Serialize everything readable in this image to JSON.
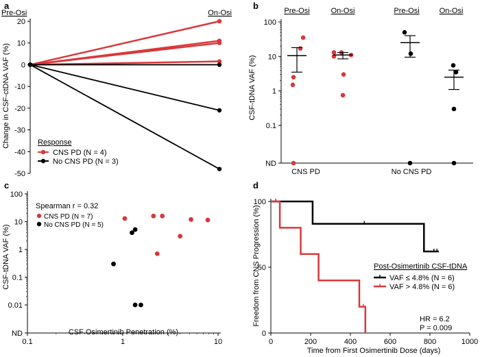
{
  "chart_data": [
    {
      "panel": "a",
      "type": "line",
      "top_left_label": "Pre-Osi",
      "top_right_label": "On-Osi",
      "ylabel": "Change in CSF-ctDNA VAF (%)",
      "ylim": [
        -50,
        20
      ],
      "yticks": [
        "20",
        "10",
        "0",
        "-10",
        "-20",
        "-30",
        "-40",
        "-50"
      ],
      "legend_title": "Response",
      "legend": [
        {
          "name": "CNS PD (N = 4)",
          "color": "#d9373a"
        },
        {
          "name": "No CNS PD (N = 3)",
          "color": "#000000"
        }
      ],
      "series": [
        {
          "group": "CNS PD",
          "color": "#d9373a",
          "values": [
            0,
            20
          ]
        },
        {
          "group": "CNS PD",
          "color": "#d9373a",
          "values": [
            0,
            11
          ]
        },
        {
          "group": "CNS PD",
          "color": "#d9373a",
          "values": [
            0,
            10
          ]
        },
        {
          "group": "CNS PD",
          "color": "#d9373a",
          "values": [
            0,
            1.5
          ]
        },
        {
          "group": "No CNS PD",
          "color": "#000000",
          "values": [
            0,
            0
          ]
        },
        {
          "group": "No CNS PD",
          "color": "#000000",
          "values": [
            0,
            -21
          ]
        },
        {
          "group": "No CNS PD",
          "color": "#000000",
          "values": [
            0,
            -48
          ]
        }
      ]
    },
    {
      "panel": "b",
      "type": "scatter",
      "ylabel": "CSF-tDNA VAF (%)",
      "yscale": "log",
      "yticks": [
        "100",
        "10",
        "1",
        "0.1",
        "ND"
      ],
      "groups": [
        "CNS PD",
        "No CNS PD"
      ],
      "sublabels": [
        "Pre-Osi",
        "On-Osi",
        "Pre-Osi",
        "On-Osi"
      ],
      "columns": [
        {
          "label": "Pre-Osi",
          "group": "CNS PD",
          "color": "#d9373a",
          "values": [
            35,
            17,
            2.5,
            1.5,
            "ND"
          ],
          "mean": 10.5,
          "sem_low": 3.5,
          "sem_high": 18
        },
        {
          "label": "On-Osi",
          "group": "CNS PD",
          "color": "#d9373a",
          "values": [
            13,
            13,
            11,
            10,
            3,
            0.75
          ],
          "mean": 11,
          "sem_low": 8.5,
          "sem_high": 13
        },
        {
          "label": "Pre-Osi",
          "group": "No CNS PD",
          "color": "#000000",
          "values": [
            50,
            12,
            "ND"
          ],
          "mean": 25,
          "sem_low": 9.5,
          "sem_high": 40
        },
        {
          "label": "On-Osi",
          "group": "No CNS PD",
          "color": "#000000",
          "values": [
            5.5,
            3.5,
            0.3,
            "ND"
          ],
          "mean": 2.5,
          "sem_low": 1.1,
          "sem_high": 4
        }
      ]
    },
    {
      "panel": "c",
      "type": "scatter",
      "xlabel": "CSF Osimertinib Penetration (%)",
      "ylabel": "CSF-tDNA VAF (%)",
      "xscale": "log",
      "yscale": "log",
      "xticks": [
        "0.1",
        "1",
        "10"
      ],
      "yticks": [
        "100",
        "10",
        "1",
        "0.1",
        "0.01",
        "ND"
      ],
      "annotation": "Spearman r = 0.32",
      "legend": [
        {
          "name": "CNS PD (N = 7)",
          "color": "#d9373a"
        },
        {
          "name": "No CNS PD (N = 5)",
          "color": "#000000"
        }
      ],
      "series": [
        {
          "name": "CNS PD",
          "color": "#d9373a",
          "points": [
            [
              1.05,
              13
            ],
            [
              2.1,
              16
            ],
            [
              2.6,
              16
            ],
            [
              2.3,
              0.7
            ],
            [
              4,
              3
            ],
            [
              5.2,
              12
            ],
            [
              7.8,
              11.5
            ]
          ]
        },
        {
          "name": "No CNS PD",
          "color": "#000000",
          "points": [
            [
              0.8,
              0.3
            ],
            [
              1.25,
              4
            ],
            [
              1.35,
              5.2
            ],
            [
              1.35,
              0.01
            ],
            [
              1.55,
              0.01
            ]
          ]
        }
      ]
    },
    {
      "panel": "d",
      "type": "line",
      "subtype": "kaplan-meier",
      "xlabel": "Time from First Osimertinib Dose (days)",
      "ylabel": "Freedom from CNS Progression (%)",
      "xlim": [
        0,
        1000
      ],
      "ylim": [
        0,
        100
      ],
      "xticks": [
        "0",
        "200",
        "400",
        "600",
        "800",
        "1000"
      ],
      "yticks": [
        "100",
        "50",
        "0"
      ],
      "legend_title": "Post-Osimertinib CSF-tDNA",
      "legend": [
        {
          "name": "VAF ≤ 4.8% (N = 6)",
          "color": "#000000"
        },
        {
          "name": "VAF > 4.8% (N = 6)",
          "color": "#d9373a"
        }
      ],
      "hr_text": "HR = 6.2",
      "p_text": "P = 0.009",
      "series": [
        {
          "name": "VAF ≤ 4.8%",
          "color": "#000000",
          "steps": [
            [
              0,
              100
            ],
            [
              210,
              100
            ],
            [
              210,
              83
            ],
            [
              770,
              83
            ],
            [
              770,
              62
            ],
            [
              845,
              62
            ]
          ],
          "censored": [
            [
              25,
              100
            ],
            [
              470,
              83
            ],
            [
              820,
              62
            ],
            [
              835,
              62
            ]
          ]
        },
        {
          "name": "VAF > 4.8%",
          "color": "#d9373a",
          "steps": [
            [
              0,
              100
            ],
            [
              45,
              100
            ],
            [
              45,
              80
            ],
            [
              150,
              80
            ],
            [
              150,
              60
            ],
            [
              240,
              60
            ],
            [
              240,
              40
            ],
            [
              445,
              40
            ],
            [
              445,
              20
            ],
            [
              475,
              20
            ],
            [
              475,
              0
            ]
          ],
          "censored": [
            [
              25,
              100
            ],
            [
              465,
              20
            ]
          ]
        }
      ]
    }
  ]
}
